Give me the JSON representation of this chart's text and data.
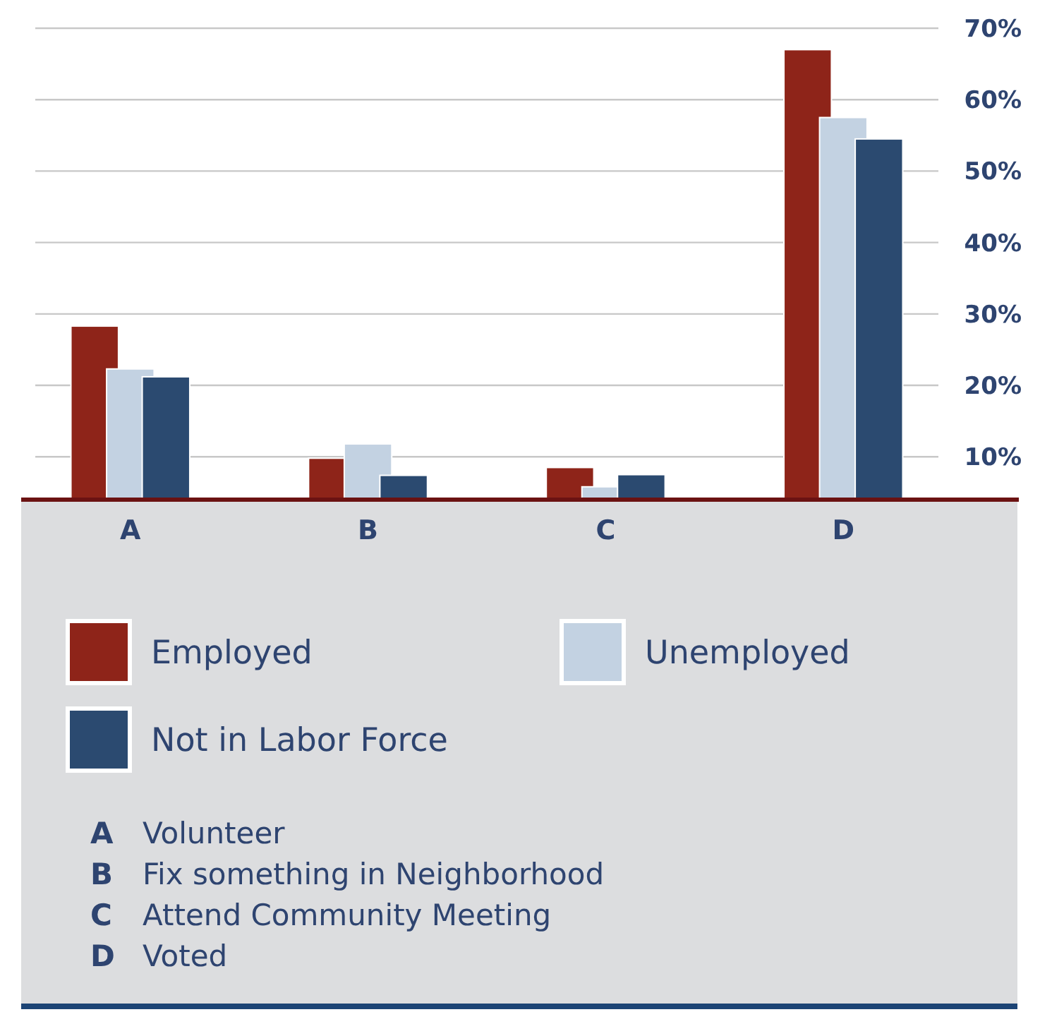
{
  "chart_data": {
    "type": "bar",
    "categories": [
      "A",
      "B",
      "C",
      "D"
    ],
    "series": [
      {
        "name": "Employed",
        "color": "#8e2419",
        "values": [
          28.3,
          9.8,
          8.5,
          67.0
        ]
      },
      {
        "name": "Unemployed",
        "color": "#c3d2e2",
        "values": [
          22.3,
          11.8,
          5.8,
          57.5
        ]
      },
      {
        "name": "Not in Labor Force",
        "color": "#2b4a70",
        "values": [
          21.2,
          7.4,
          7.5,
          54.5
        ]
      }
    ],
    "ylim": [
      4,
      70
    ],
    "yticks": [
      {
        "value": 10,
        "label": "10%"
      },
      {
        "value": 20,
        "label": "20%"
      },
      {
        "value": 30,
        "label": "30%"
      },
      {
        "value": 40,
        "label": "40%"
      },
      {
        "value": 50,
        "label": "50%"
      },
      {
        "value": 60,
        "label": "60%"
      },
      {
        "value": 70,
        "label": "70%"
      }
    ],
    "grid": "y",
    "legend": "bottom",
    "annotations": [
      "A  Volunteer",
      "B  Fix something in Neighborhood",
      "C  Attend Community Meeting",
      "D  Voted"
    ]
  }
}
